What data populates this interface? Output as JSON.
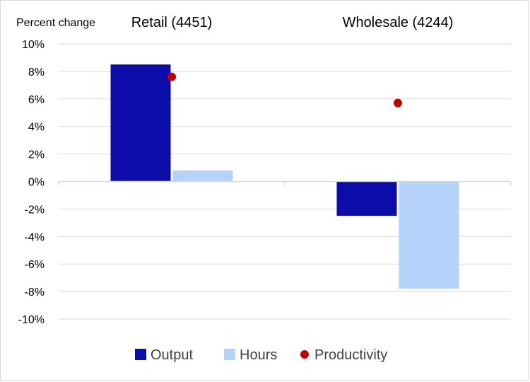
{
  "chart_data": {
    "type": "bar",
    "ylabel": "Percent change",
    "categories": [
      "Retail (4451)",
      "Wholesale (4244)"
    ],
    "series": [
      {
        "name": "Output",
        "kind": "bar",
        "color": "#0c0ca8",
        "values": [
          8.5,
          -2.5
        ]
      },
      {
        "name": "Hours",
        "kind": "bar",
        "color": "#b4d2fa",
        "values": [
          0.8,
          -7.8
        ]
      },
      {
        "name": "Productivity",
        "kind": "point",
        "color": "#c00000",
        "values": [
          7.6,
          5.7
        ]
      }
    ],
    "ylim": [
      -10,
      10
    ],
    "yticks": [
      10,
      8,
      6,
      4,
      2,
      0,
      -2,
      -4,
      -6,
      -8,
      -10
    ],
    "ytick_labels": [
      "10%",
      "8%",
      "6%",
      "4%",
      "2%",
      "0%",
      "-2%",
      "-4%",
      "-6%",
      "-8%",
      "-10%"
    ],
    "grid": true,
    "legend_position": "bottom"
  }
}
